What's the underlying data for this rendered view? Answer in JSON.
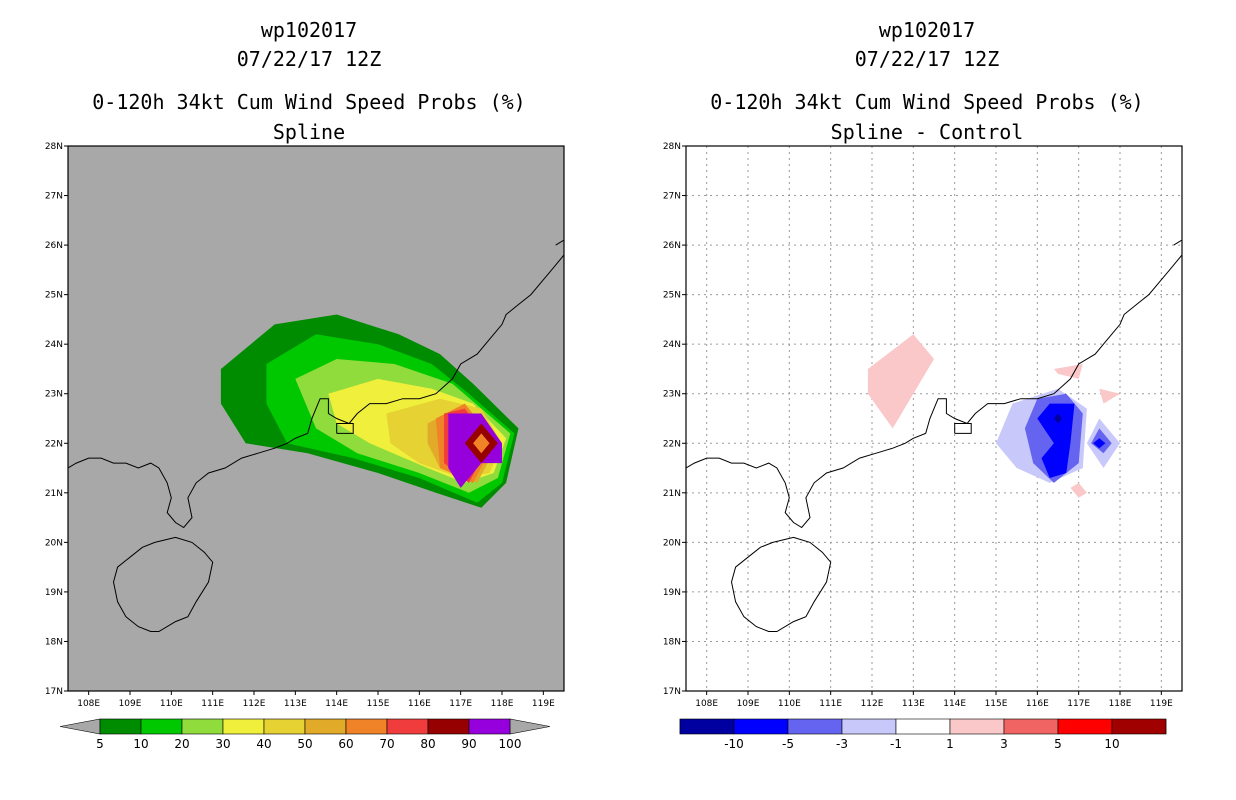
{
  "panels": [
    {
      "storm_id": "wp102017",
      "datetime": "07/22/17 12Z",
      "product": "0-120h 34kt Cum Wind Speed Probs (%)",
      "subtitle": "Spline"
    },
    {
      "storm_id": "wp102017",
      "datetime": "07/22/17 12Z",
      "product": "0-120h 34kt Cum Wind Speed Probs (%)",
      "subtitle": "Spline - Control"
    }
  ],
  "chart_data": [
    {
      "type": "heatmap",
      "title": "0-120h 34kt Cum Wind Speed Probs (%)",
      "subtitle": "Spline",
      "x_range": [
        107.5,
        119.5
      ],
      "y_range": [
        17,
        28
      ],
      "x_ticks": [
        "108E",
        "109E",
        "110E",
        "111E",
        "112E",
        "113E",
        "114E",
        "115E",
        "116E",
        "117E",
        "118E",
        "119E"
      ],
      "y_ticks": [
        "17N",
        "18N",
        "19N",
        "20N",
        "21N",
        "22N",
        "23N",
        "24N",
        "25N",
        "26N",
        "27N",
        "28N"
      ],
      "background_color": "#a8a8a8",
      "colorbar": {
        "labels": [
          "5",
          "10",
          "20",
          "30",
          "40",
          "50",
          "60",
          "70",
          "80",
          "90",
          "100"
        ],
        "colors": [
          "#008c00",
          "#00c800",
          "#8fdc3c",
          "#f0f03c",
          "#e6d232",
          "#e1aa28",
          "#f08228",
          "#f03c3c",
          "#960000",
          "#9600dc"
        ]
      },
      "contour_levels": [
        {
          "level": 5,
          "color": "#008c00",
          "shape": [
            [
              111.2,
              23.5
            ],
            [
              112.5,
              24.4
            ],
            [
              114,
              24.6
            ],
            [
              115.5,
              24.2
            ],
            [
              116.5,
              23.8
            ],
            [
              117.3,
              23.2
            ],
            [
              118.4,
              22.3
            ],
            [
              118.1,
              21.2
            ],
            [
              117.5,
              20.7
            ],
            [
              116.4,
              21.0
            ],
            [
              115,
              21.4
            ],
            [
              113.3,
              21.8
            ],
            [
              111.8,
              22.0
            ],
            [
              111.2,
              22.8
            ]
          ]
        },
        {
          "level": 10,
          "color": "#00c800",
          "shape": [
            [
              112.3,
              23.6
            ],
            [
              113.5,
              24.2
            ],
            [
              115,
              24.0
            ],
            [
              116.3,
              23.6
            ],
            [
              117.2,
              23.0
            ],
            [
              118.3,
              22.2
            ],
            [
              118.0,
              21.2
            ],
            [
              117.4,
              20.8
            ],
            [
              116,
              21.3
            ],
            [
              114.4,
              21.7
            ],
            [
              112.8,
              22.0
            ],
            [
              112.3,
              22.8
            ]
          ]
        },
        {
          "level": 20,
          "color": "#8fdc3c",
          "shape": [
            [
              113.0,
              23.3
            ],
            [
              114,
              23.7
            ],
            [
              115.4,
              23.6
            ],
            [
              116.8,
              23.2
            ],
            [
              118.2,
              22.2
            ],
            [
              117.9,
              21.3
            ],
            [
              117.2,
              21.0
            ],
            [
              116,
              21.4
            ],
            [
              114.5,
              21.8
            ],
            [
              113.5,
              22.3
            ]
          ]
        },
        {
          "level": 30,
          "color": "#f0f03c",
          "shape": [
            [
              113.8,
              23.0
            ],
            [
              115,
              23.3
            ],
            [
              116.3,
              23.1
            ],
            [
              117.3,
              22.8
            ],
            [
              118.1,
              22.1
            ],
            [
              117.8,
              21.4
            ],
            [
              117.1,
              21.2
            ],
            [
              116.2,
              21.5
            ],
            [
              114.8,
              22.0
            ],
            [
              114.0,
              22.4
            ]
          ]
        },
        {
          "level": 40,
          "color": "#e6d232",
          "shape": [
            [
              115.2,
              22.6
            ],
            [
              116.5,
              22.9
            ],
            [
              117.5,
              22.7
            ],
            [
              118.0,
              22.0
            ],
            [
              117.7,
              21.4
            ],
            [
              117.0,
              21.3
            ],
            [
              116.0,
              21.6
            ],
            [
              115.3,
              22.0
            ]
          ]
        },
        {
          "level": 50,
          "color": "#e1aa28",
          "shape": [
            [
              116.2,
              22.4
            ],
            [
              117.1,
              22.8
            ],
            [
              117.9,
              22.0
            ],
            [
              117.4,
              21.2
            ],
            [
              116.5,
              21.5
            ],
            [
              116.2,
              22.0
            ]
          ]
        },
        {
          "level": 60,
          "color": "#f08228",
          "shape": [
            [
              116.4,
              22.5
            ],
            [
              117.1,
              22.8
            ],
            [
              117.8,
              22.0
            ],
            [
              117.3,
              21.2
            ],
            [
              116.5,
              21.5
            ]
          ]
        },
        {
          "level": 70,
          "color": "#f03c3c",
          "shape": [
            [
              116.6,
              22.6
            ],
            [
              117.1,
              22.7
            ],
            [
              117.7,
              22.0
            ],
            [
              117.2,
              21.2
            ],
            [
              116.6,
              21.6
            ]
          ]
        },
        {
          "level": 90,
          "color": "#9600dc",
          "shape": [
            [
              116.7,
              22.6
            ],
            [
              117.5,
              22.6
            ],
            [
              118.0,
              22.0
            ],
            [
              118.0,
              21.6
            ],
            [
              117.5,
              21.6
            ],
            [
              117.0,
              21.1
            ],
            [
              116.7,
              21.5
            ]
          ]
        },
        {
          "level": 80,
          "color": "#960000",
          "shape": [
            [
              117.5,
              22.4
            ],
            [
              117.9,
              22.0
            ],
            [
              117.5,
              21.6
            ],
            [
              117.1,
              22.0
            ]
          ]
        },
        {
          "level": 60,
          "color": "#f08228",
          "shape": [
            [
              117.5,
              22.2
            ],
            [
              117.7,
              22.0
            ],
            [
              117.5,
              21.8
            ],
            [
              117.3,
              22.0
            ]
          ]
        }
      ]
    },
    {
      "type": "heatmap",
      "title": "0-120h 34kt Cum Wind Speed Probs (%)",
      "subtitle": "Spline - Control",
      "x_range": [
        107.5,
        119.5
      ],
      "y_range": [
        17,
        28
      ],
      "x_ticks": [
        "108E",
        "109E",
        "110E",
        "111E",
        "112E",
        "113E",
        "114E",
        "115E",
        "116E",
        "117E",
        "118E",
        "119E"
      ],
      "y_ticks": [
        "17N",
        "18N",
        "19N",
        "20N",
        "21N",
        "22N",
        "23N",
        "24N",
        "25N",
        "26N",
        "27N",
        "28N"
      ],
      "grid": true,
      "background_color": "#ffffff",
      "colorbar": {
        "labels": [
          "-10",
          "-5",
          "-3",
          "-1",
          "1",
          "3",
          "5",
          "10"
        ],
        "colors": [
          "#0000a0",
          "#0000ff",
          "#6464f0",
          "#c8c8fa",
          "#ffffff",
          "#fac8c8",
          "#f06464",
          "#ff0000",
          "#a00000"
        ]
      },
      "contour_levels": [
        {
          "level": 1,
          "color": "#fac8c8",
          "shape": [
            [
              111.9,
              23.5
            ],
            [
              113.0,
              24.2
            ],
            [
              113.5,
              23.7
            ],
            [
              112.5,
              22.3
            ],
            [
              111.9,
              23.0
            ]
          ]
        },
        {
          "level": 1,
          "color": "#fac8c8",
          "shape": [
            [
              116.4,
              23.5
            ],
            [
              117.1,
              23.6
            ],
            [
              117.0,
              23.3
            ],
            [
              116.5,
              23.4
            ]
          ]
        },
        {
          "level": 1,
          "color": "#fac8c8",
          "shape": [
            [
              117.5,
              23.1
            ],
            [
              118.0,
              23.0
            ],
            [
              117.6,
              22.8
            ]
          ]
        },
        {
          "level": 1,
          "color": "#fac8c8",
          "shape": [
            [
              116.8,
              21.1
            ],
            [
              117.0,
              21.2
            ],
            [
              117.2,
              21.0
            ],
            [
              117.0,
              20.9
            ]
          ]
        },
        {
          "level": -1,
          "color": "#c8c8fa",
          "shape": [
            [
              115.0,
              22.0
            ],
            [
              115.4,
              22.8
            ],
            [
              116.5,
              23.1
            ],
            [
              117.2,
              22.7
            ],
            [
              117.1,
              21.5
            ],
            [
              116.3,
              21.2
            ],
            [
              115.5,
              21.5
            ]
          ]
        },
        {
          "level": -1,
          "color": "#c8c8fa",
          "shape": [
            [
              117.5,
              22.5
            ],
            [
              118.0,
              22.0
            ],
            [
              117.6,
              21.5
            ],
            [
              117.2,
              22.0
            ]
          ]
        },
        {
          "level": -3,
          "color": "#6464f0",
          "shape": [
            [
              115.7,
              22.3
            ],
            [
              116.0,
              22.9
            ],
            [
              116.7,
              23.0
            ],
            [
              117.1,
              22.6
            ],
            [
              117.0,
              21.6
            ],
            [
              116.4,
              21.2
            ],
            [
              115.9,
              21.6
            ]
          ]
        },
        {
          "level": -3,
          "color": "#6464f0",
          "shape": [
            [
              117.5,
              22.3
            ],
            [
              117.8,
              22.0
            ],
            [
              117.6,
              21.8
            ],
            [
              117.3,
              22.0
            ]
          ]
        },
        {
          "level": -5,
          "color": "#0000ff",
          "shape": [
            [
              116.0,
              22.5
            ],
            [
              116.3,
              22.8
            ],
            [
              116.9,
              22.8
            ],
            [
              116.8,
              22.0
            ],
            [
              116.7,
              21.4
            ],
            [
              116.3,
              21.3
            ],
            [
              116.1,
              21.7
            ],
            [
              116.4,
              22.0
            ]
          ]
        },
        {
          "level": -5,
          "color": "#0000ff",
          "shape": [
            [
              117.5,
              22.1
            ],
            [
              117.65,
              22.0
            ],
            [
              117.5,
              21.9
            ],
            [
              117.35,
              22.0
            ]
          ]
        },
        {
          "level": -10,
          "color": "#0000a0",
          "shape": [
            [
              116.5,
              22.6
            ],
            [
              116.6,
              22.5
            ],
            [
              116.5,
              22.4
            ],
            [
              116.4,
              22.5
            ]
          ]
        }
      ]
    }
  ],
  "coastline": [
    [
      [
        107.5,
        21.5
      ],
      [
        107.7,
        21.6
      ],
      [
        108,
        21.7
      ],
      [
        108.3,
        21.7
      ],
      [
        108.6,
        21.6
      ],
      [
        108.9,
        21.6
      ],
      [
        109.2,
        21.5
      ],
      [
        109.5,
        21.6
      ],
      [
        109.7,
        21.5
      ],
      [
        109.9,
        21.2
      ],
      [
        110.0,
        20.9
      ],
      [
        109.9,
        20.6
      ],
      [
        110.1,
        20.4
      ],
      [
        110.3,
        20.3
      ],
      [
        110.5,
        20.5
      ],
      [
        110.4,
        20.9
      ],
      [
        110.6,
        21.2
      ],
      [
        110.9,
        21.4
      ],
      [
        111.3,
        21.5
      ],
      [
        111.7,
        21.7
      ],
      [
        112.1,
        21.8
      ],
      [
        112.5,
        21.9
      ],
      [
        112.8,
        22.0
      ],
      [
        113.0,
        22.1
      ],
      [
        113.3,
        22.2
      ],
      [
        113.4,
        22.5
      ],
      [
        113.5,
        22.7
      ],
      [
        113.6,
        22.9
      ],
      [
        113.8,
        22.9
      ],
      [
        113.8,
        22.6
      ],
      [
        114.0,
        22.5
      ],
      [
        114.3,
        22.4
      ],
      [
        114.5,
        22.6
      ],
      [
        114.8,
        22.8
      ],
      [
        115.2,
        22.8
      ],
      [
        115.6,
        22.9
      ],
      [
        116.0,
        22.9
      ],
      [
        116.4,
        23.0
      ],
      [
        116.8,
        23.3
      ],
      [
        117.0,
        23.6
      ],
      [
        117.4,
        23.8
      ],
      [
        117.7,
        24.1
      ],
      [
        118.0,
        24.4
      ],
      [
        118.1,
        24.6
      ],
      [
        118.4,
        24.8
      ],
      [
        118.7,
        25.0
      ],
      [
        119.0,
        25.3
      ],
      [
        119.2,
        25.5
      ],
      [
        119.5,
        25.8
      ]
    ],
    [
      [
        119.3,
        26.0
      ],
      [
        119.5,
        26.1
      ]
    ],
    [
      [
        110.1,
        20.1
      ],
      [
        110.5,
        20.0
      ],
      [
        110.8,
        19.8
      ],
      [
        111.0,
        19.6
      ],
      [
        110.9,
        19.2
      ],
      [
        110.6,
        18.8
      ],
      [
        110.4,
        18.5
      ],
      [
        110.1,
        18.4
      ],
      [
        109.7,
        18.2
      ],
      [
        109.5,
        18.2
      ],
      [
        109.2,
        18.3
      ],
      [
        108.9,
        18.5
      ],
      [
        108.7,
        18.8
      ],
      [
        108.6,
        19.2
      ],
      [
        108.7,
        19.5
      ],
      [
        109.0,
        19.7
      ],
      [
        109.3,
        19.9
      ],
      [
        109.6,
        20.0
      ],
      [
        110.1,
        20.1
      ]
    ],
    [
      [
        114.0,
        22.2
      ],
      [
        114.4,
        22.2
      ],
      [
        114.4,
        22.4
      ],
      [
        114.0,
        22.4
      ],
      [
        114.0,
        22.2
      ]
    ]
  ]
}
